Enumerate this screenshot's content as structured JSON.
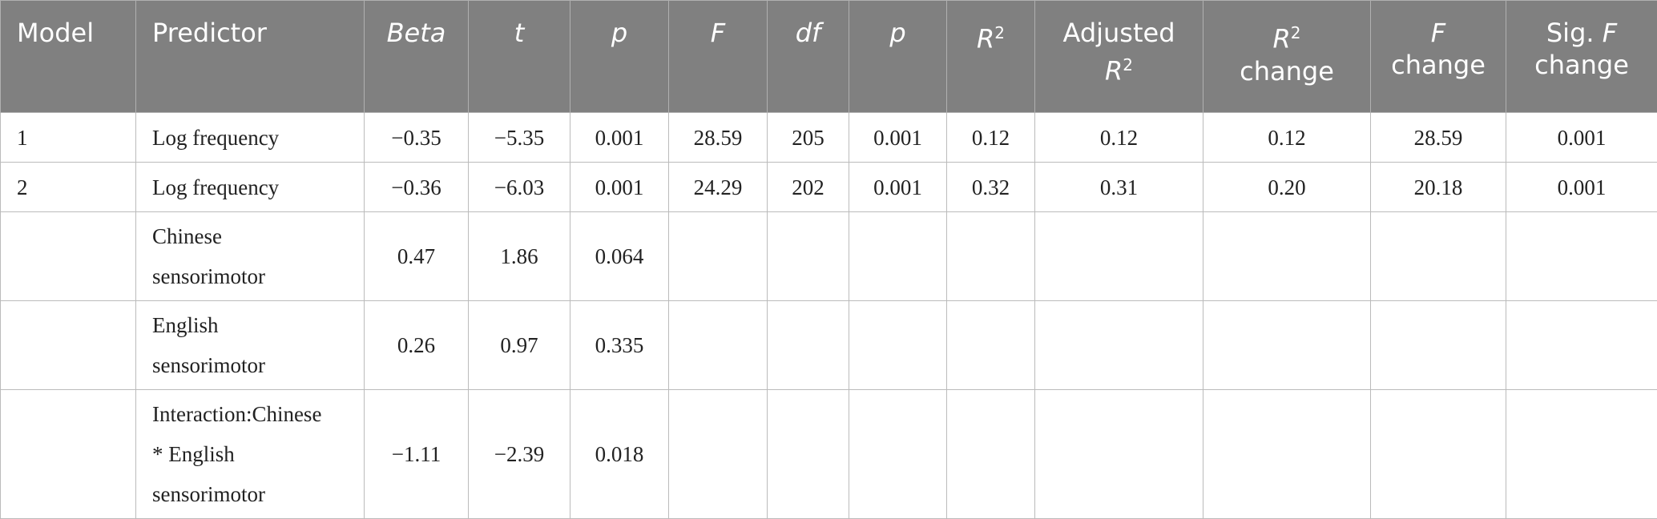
{
  "table": {
    "header": [
      [
        [
          {
            "text": "Model"
          }
        ]
      ],
      [
        [
          {
            "text": "Predictor"
          }
        ]
      ],
      [
        [
          {
            "text": "Beta",
            "italic": true
          }
        ]
      ],
      [
        [
          {
            "text": "t",
            "italic": true
          }
        ]
      ],
      [
        [
          {
            "text": "p",
            "italic": true
          }
        ]
      ],
      [
        [
          {
            "text": "F",
            "italic": true
          }
        ]
      ],
      [
        [
          {
            "text": "df",
            "italic": true
          }
        ]
      ],
      [
        [
          {
            "text": "p",
            "italic": true
          }
        ]
      ],
      [
        [
          {
            "text": "R",
            "italic": true
          },
          {
            "text": "2",
            "sup": true
          }
        ]
      ],
      [
        [
          {
            "text": "Adjusted"
          }
        ],
        [
          {
            "text": "R",
            "italic": true
          },
          {
            "text": "2",
            "sup": true
          }
        ]
      ],
      [
        [
          {
            "text": "R",
            "italic": true
          },
          {
            "text": "2",
            "sup": true
          }
        ],
        [
          {
            "text": "change"
          }
        ]
      ],
      [
        [
          {
            "text": "F",
            "italic": true
          }
        ],
        [
          {
            "text": "change"
          }
        ]
      ],
      [
        [
          {
            "text": "Sig. "
          },
          {
            "text": "F",
            "italic": true
          }
        ],
        [
          {
            "text": "change"
          }
        ]
      ]
    ],
    "rows": [
      [
        "1",
        [
          "Log frequency"
        ],
        "−0.35",
        "−5.35",
        "0.001",
        "28.59",
        "205",
        "0.001",
        "0.12",
        "0.12",
        "0.12",
        "28.59",
        "0.001"
      ],
      [
        "2",
        [
          "Log frequency"
        ],
        "−0.36",
        "−6.03",
        "0.001",
        "24.29",
        "202",
        "0.001",
        "0.32",
        "0.31",
        "0.20",
        "20.18",
        "0.001"
      ],
      [
        null,
        [
          "Chinese",
          "sensorimotor"
        ],
        "0.47",
        "1.86",
        "0.064",
        null,
        null,
        null,
        null,
        null,
        null,
        null,
        null
      ],
      [
        null,
        [
          "English",
          "sensorimotor"
        ],
        "0.26",
        "0.97",
        "0.335",
        null,
        null,
        null,
        null,
        null,
        null,
        null,
        null
      ],
      [
        null,
        [
          "Interaction:Chinese",
          "* English",
          "sensorimotor"
        ],
        "−1.11",
        "−2.39",
        "0.018",
        null,
        null,
        null,
        null,
        null,
        null,
        null,
        null
      ]
    ]
  }
}
